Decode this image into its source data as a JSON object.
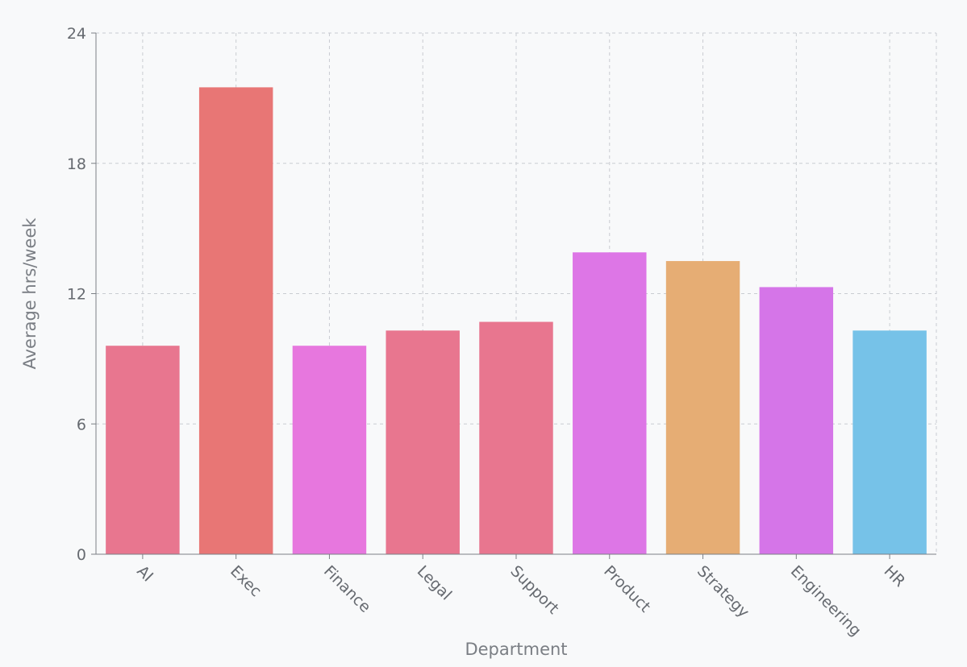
{
  "chart_data": {
    "type": "bar",
    "categories": [
      "AI",
      "Exec",
      "Finance",
      "Legal",
      "Support",
      "Product",
      "Strategy",
      "Engineering",
      "HR"
    ],
    "values": [
      9.6,
      21.5,
      9.6,
      10.3,
      10.7,
      13.9,
      13.5,
      12.3,
      10.3
    ],
    "colors": [
      "#e8768f",
      "#e87675",
      "#e777de",
      "#e8768f",
      "#e8768f",
      "#dd76e6",
      "#e6ad74",
      "#d575e8",
      "#76c2e8"
    ],
    "title": "",
    "xlabel": "Department",
    "ylabel": "Average hrs/week",
    "ylim": [
      0,
      24
    ],
    "yticks": [
      0,
      6,
      12,
      18,
      24
    ],
    "grid": true
  }
}
